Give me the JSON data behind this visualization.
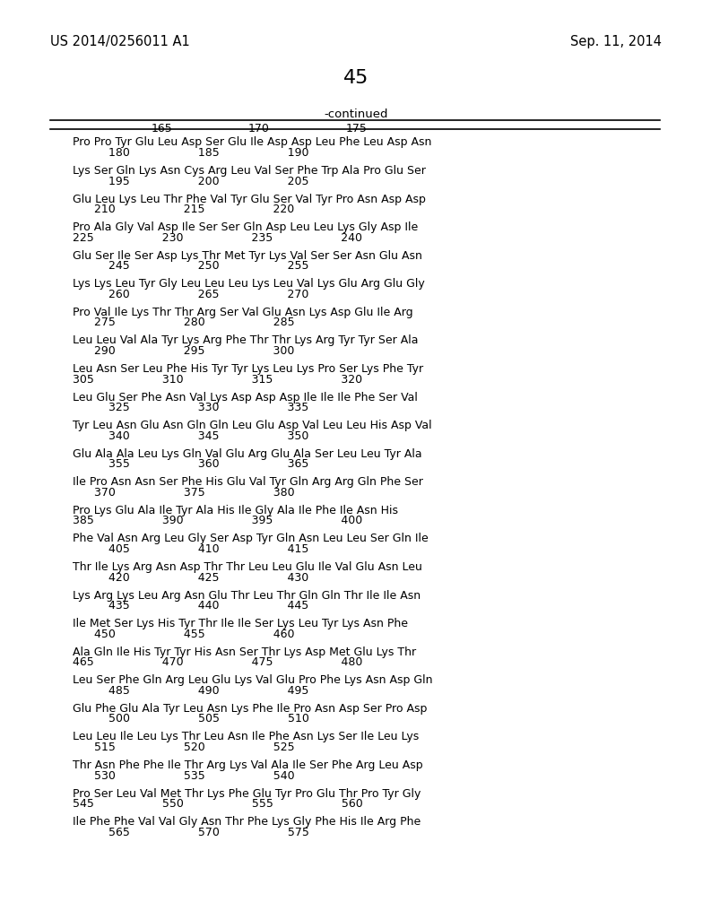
{
  "header_left": "US 2014/0256011 A1",
  "header_right": "Sep. 11, 2014",
  "page_number": "45",
  "continued_label": "-continued",
  "background_color": "#ffffff",
  "text_color": "#000000",
  "blocks": [
    {
      "seq": "Pro Pro Tyr Glu Leu Asp Ser Glu Ile Asp Asp Leu Phe Leu Asp Asn",
      "nums": "          180                   185                   190"
    },
    {
      "seq": "Lys Ser Gln Lys Asn Cys Arg Leu Val Ser Phe Trp Ala Pro Glu Ser",
      "nums": "          195                   200                   205"
    },
    {
      "seq": "Glu Leu Lys Leu Thr Phe Val Tyr Glu Ser Val Tyr Pro Asn Asp Asp",
      "nums": "      210                   215                   220"
    },
    {
      "seq": "Pro Ala Gly Val Asp Ile Ser Ser Gln Asp Leu Leu Lys Gly Asp Ile",
      "nums": "225                   230                   235                   240"
    },
    {
      "seq": "Glu Ser Ile Ser Asp Lys Thr Met Tyr Lys Val Ser Ser Asn Glu Asn",
      "nums": "          245                   250                   255"
    },
    {
      "seq": "Lys Lys Leu Tyr Gly Leu Leu Leu Lys Leu Val Lys Glu Arg Glu Gly",
      "nums": "          260                   265                   270"
    },
    {
      "seq": "Pro Val Ile Lys Thr Thr Arg Ser Val Glu Asn Lys Asp Glu Ile Arg",
      "nums": "      275                   280                   285"
    },
    {
      "seq": "Leu Leu Val Ala Tyr Lys Arg Phe Thr Thr Lys Arg Tyr Tyr Ser Ala",
      "nums": "      290                   295                   300"
    },
    {
      "seq": "Leu Asn Ser Leu Phe His Tyr Tyr Lys Leu Lys Pro Ser Lys Phe Tyr",
      "nums": "305                   310                   315                   320"
    },
    {
      "seq": "Leu Glu Ser Phe Asn Val Lys Asp Asp Asp Ile Ile Ile Phe Ser Val",
      "nums": "          325                   330                   335"
    },
    {
      "seq": "Tyr Leu Asn Glu Asn Gln Gln Leu Glu Asp Val Leu Leu His Asp Val",
      "nums": "          340                   345                   350"
    },
    {
      "seq": "Glu Ala Ala Leu Lys Gln Val Glu Arg Glu Ala Ser Leu Leu Tyr Ala",
      "nums": "          355                   360                   365"
    },
    {
      "seq": "Ile Pro Asn Asn Ser Phe His Glu Val Tyr Gln Arg Arg Gln Phe Ser",
      "nums": "      370                   375                   380"
    },
    {
      "seq": "Pro Lys Glu Ala Ile Tyr Ala His Ile Gly Ala Ile Phe Ile Asn His",
      "nums": "385                   390                   395                   400"
    },
    {
      "seq": "Phe Val Asn Arg Leu Gly Ser Asp Tyr Gln Asn Leu Leu Ser Gln Ile",
      "nums": "          405                   410                   415"
    },
    {
      "seq": "Thr Ile Lys Arg Asn Asp Thr Thr Leu Leu Glu Ile Val Glu Asn Leu",
      "nums": "          420                   425                   430"
    },
    {
      "seq": "Lys Arg Lys Leu Arg Asn Glu Thr Leu Thr Gln Gln Thr Ile Ile Asn",
      "nums": "          435                   440                   445"
    },
    {
      "seq": "Ile Met Ser Lys His Tyr Thr Ile Ile Ser Lys Leu Tyr Lys Asn Phe",
      "nums": "      450                   455                   460"
    },
    {
      "seq": "Ala Gln Ile His Tyr Tyr His Asn Ser Thr Lys Asp Met Glu Lys Thr",
      "nums": "465                   470                   475                   480"
    },
    {
      "seq": "Leu Ser Phe Gln Arg Leu Glu Lys Val Glu Pro Phe Lys Asn Asp Gln",
      "nums": "          485                   490                   495"
    },
    {
      "seq": "Glu Phe Glu Ala Tyr Leu Asn Lys Phe Ile Pro Asn Asp Ser Pro Asp",
      "nums": "          500                   505                   510"
    },
    {
      "seq": "Leu Leu Ile Leu Lys Thr Leu Asn Ile Phe Asn Lys Ser Ile Leu Lys",
      "nums": "      515                   520                   525"
    },
    {
      "seq": "Thr Asn Phe Phe Ile Thr Arg Lys Val Ala Ile Ser Phe Arg Leu Asp",
      "nums": "      530                   535                   540"
    },
    {
      "seq": "Pro Ser Leu Val Met Thr Lys Phe Glu Tyr Pro Glu Thr Pro Tyr Gly",
      "nums": "545                   550                   555                   560"
    },
    {
      "seq": "Ile Phe Phe Val Val Gly Asn Thr Phe Lys Gly Phe His Ile Arg Phe",
      "nums": "          565                   570                   575"
    }
  ],
  "col_header_165": "165",
  "col_header_170": "170",
  "col_header_175": "175"
}
